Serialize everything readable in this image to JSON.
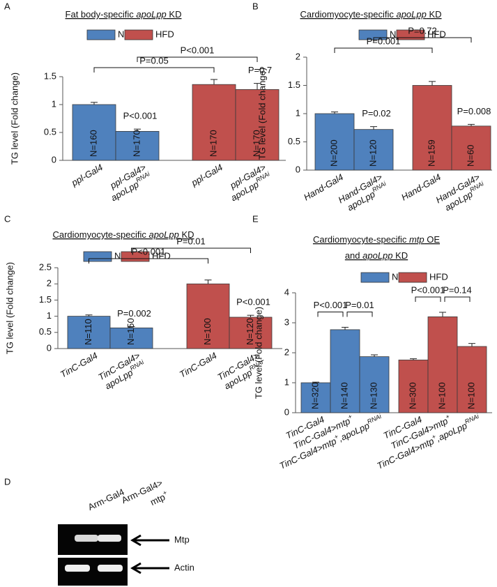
{
  "chart_data": [
    {
      "type": "bar",
      "panel": "A",
      "title": [
        [
          "Fat body-specific ",
          "apoLpp",
          " KD"
        ]
      ],
      "y_label": "TG level (Fold change)",
      "categories": [
        [
          [
            "ppl-Gal4"
          ]
        ],
        [
          [
            "ppl-Gal4>"
          ],
          [
            "apoLpp",
            "RNAi"
          ]
        ],
        [
          [
            "ppl-Gal4"
          ]
        ],
        [
          [
            "ppl-Gal4>"
          ],
          [
            "apoLpp",
            "RNAi"
          ]
        ]
      ],
      "series": [
        {
          "name": "NFD",
          "color": "#4f81bd",
          "values": [
            1.0,
            0.52,
            null,
            null
          ],
          "errors": [
            0.04,
            0.04,
            null,
            null
          ],
          "n_labels": [
            "N=160",
            "N=170",
            null,
            null
          ]
        },
        {
          "name": "HFD",
          "color": "#c0504d",
          "values": [
            null,
            null,
            1.36,
            1.27
          ],
          "errors": [
            null,
            null,
            0.09,
            0.11
          ],
          "n_labels": [
            null,
            null,
            "N=170",
            "N=170"
          ]
        }
      ],
      "comparisons": [
        {
          "bars": [
            0,
            2
          ],
          "label": "P=0.05",
          "bracket": true
        },
        {
          "bars": [
            1,
            3
          ],
          "label": "P<0.001",
          "bracket": true
        },
        {
          "bars": [
            0,
            1
          ],
          "label": "P<0.001",
          "bracket": false
        },
        {
          "bars": [
            2,
            3
          ],
          "label": "P=0.7",
          "bracket": false
        }
      ],
      "ylim": [
        0,
        1.5
      ],
      "yticks": [
        0,
        0.5,
        1,
        1.5
      ]
    },
    {
      "type": "bar",
      "panel": "B",
      "title": [
        [
          "Cardiomyocyte-specific ",
          "apoLpp",
          " KD"
        ]
      ],
      "y_label": "TG level (Fold change)",
      "categories": [
        [
          [
            "Hand-Gal4"
          ]
        ],
        [
          [
            "Hand-Gal4>"
          ],
          [
            "apoLpp",
            "RNAi"
          ]
        ],
        [
          [
            "Hand-Gal4"
          ]
        ],
        [
          [
            "Hand-Gal4>"
          ],
          [
            "apoLpp",
            "RNAi"
          ]
        ]
      ],
      "series": [
        {
          "name": "NFD",
          "color": "#4f81bd",
          "values": [
            1.0,
            0.72,
            null,
            null
          ],
          "errors": [
            0.03,
            0.05,
            null,
            null
          ],
          "n_labels": [
            "N=200",
            "N=120",
            null,
            null
          ]
        },
        {
          "name": "HFD",
          "color": "#c0504d",
          "values": [
            null,
            null,
            1.5,
            0.78
          ],
          "errors": [
            null,
            null,
            0.07,
            0.03
          ],
          "n_labels": [
            null,
            null,
            "N=159",
            "N=60"
          ]
        }
      ],
      "comparisons": [
        {
          "bars": [
            0,
            2
          ],
          "label": "P=0.001",
          "bracket": true
        },
        {
          "bars": [
            1,
            3
          ],
          "label": "P=0.72",
          "bracket": true
        },
        {
          "bars": [
            0,
            1
          ],
          "label": "P=0.02",
          "bracket": false
        },
        {
          "bars": [
            2,
            3
          ],
          "label": "P=0.008",
          "bracket": false
        }
      ],
      "ylim": [
        0,
        2
      ],
      "yticks": [
        0,
        0.5,
        1,
        1.5,
        2
      ]
    },
    {
      "type": "bar",
      "panel": "C",
      "title": [
        [
          "Cardiomyocyte-specific ",
          "apoLpp",
          " KD"
        ]
      ],
      "y_label": "TG level (Fold change)",
      "categories": [
        [
          [
            "TinC-Gal4"
          ]
        ],
        [
          [
            "TinC-Gal4>"
          ],
          [
            "apoLpp",
            "RNAi"
          ]
        ],
        [
          [
            "TinC-Gal4"
          ]
        ],
        [
          [
            "TinC-Gal4>"
          ],
          [
            "apoLpp",
            "RNAi"
          ]
        ]
      ],
      "series": [
        {
          "name": "NFD",
          "color": "#4f81bd",
          "values": [
            1.0,
            0.64,
            null,
            null
          ],
          "errors": [
            0.04,
            0.04,
            null,
            null
          ],
          "n_labels": [
            "N=110",
            "N=150",
            null,
            null
          ]
        },
        {
          "name": "HFD",
          "color": "#c0504d",
          "values": [
            null,
            null,
            2.0,
            0.97
          ],
          "errors": [
            null,
            null,
            0.12,
            0.06
          ],
          "n_labels": [
            null,
            null,
            "N=100",
            "N=120"
          ]
        }
      ],
      "comparisons": [
        {
          "bars": [
            0,
            2
          ],
          "label": "P<0.001",
          "bracket": true
        },
        {
          "bars": [
            1,
            3
          ],
          "label": "P=0.01",
          "bracket": true
        },
        {
          "bars": [
            0,
            1
          ],
          "label": "P=0.002",
          "bracket": false
        },
        {
          "bars": [
            2,
            3
          ],
          "label": "P<0.001",
          "bracket": false
        }
      ],
      "ylim": [
        0,
        2.5
      ],
      "yticks": [
        0,
        0.5,
        1,
        1.5,
        2,
        2.5
      ]
    },
    {
      "type": "bar",
      "panel": "E",
      "title": [
        [
          "Cardiomyocyte-specific ",
          "mtp",
          " OE"
        ],
        [
          "and ",
          "apoLpp",
          " KD"
        ]
      ],
      "y_label": "TG level (Fold change)",
      "categories": [
        [
          [
            "TinC-Gal4"
          ]
        ],
        [
          [
            "TinC-Gal4>mtp",
            "+"
          ]
        ],
        [
          [
            "TinC-Gal4>mtp",
            "+",
            ",apoLpp",
            "RNAi"
          ]
        ],
        [
          [
            "TinC-Gal4"
          ]
        ],
        [
          [
            "TinC-Gal4>mtp",
            "+"
          ]
        ],
        [
          [
            "TinC-Gal4>mtp",
            "+",
            ",apoLpp",
            "RNAi"
          ]
        ]
      ],
      "series": [
        {
          "name": "NFD",
          "color": "#4f81bd",
          "values": [
            1.0,
            2.77,
            1.87,
            null,
            null,
            null
          ],
          "errors": [
            0.02,
            0.08,
            0.06,
            null,
            null,
            null
          ],
          "n_labels": [
            "N=320",
            "N=140",
            "N=130",
            null,
            null,
            null
          ]
        },
        {
          "name": "HFD",
          "color": "#c0504d",
          "values": [
            null,
            null,
            null,
            1.76,
            3.2,
            2.21
          ],
          "errors": [
            null,
            null,
            null,
            0.04,
            0.15,
            0.1
          ],
          "n_labels": [
            null,
            null,
            null,
            "N=300",
            "N=100",
            "N=100"
          ]
        }
      ],
      "comparisons": [
        {
          "bars": [
            0,
            1
          ],
          "label": "P<0.001",
          "bracket": true
        },
        {
          "bars": [
            1,
            2
          ],
          "label": "P=0.01",
          "bracket": true
        },
        {
          "bars": [
            3,
            4
          ],
          "label": "P<0.001",
          "bracket": true
        },
        {
          "bars": [
            4,
            5
          ],
          "label": "P=0.14",
          "bracket": true
        }
      ],
      "ylim": [
        0,
        4
      ],
      "yticks": [
        0,
        1,
        2,
        3,
        4
      ]
    }
  ],
  "gel": {
    "panel": "D",
    "lanes": [
      [
        [
          "Arm-Gal4"
        ]
      ],
      [
        [
          "Arm-Gal4>"
        ],
        [
          "mtp",
          "+"
        ]
      ]
    ],
    "bands": [
      "Mtp",
      "Actin"
    ]
  }
}
